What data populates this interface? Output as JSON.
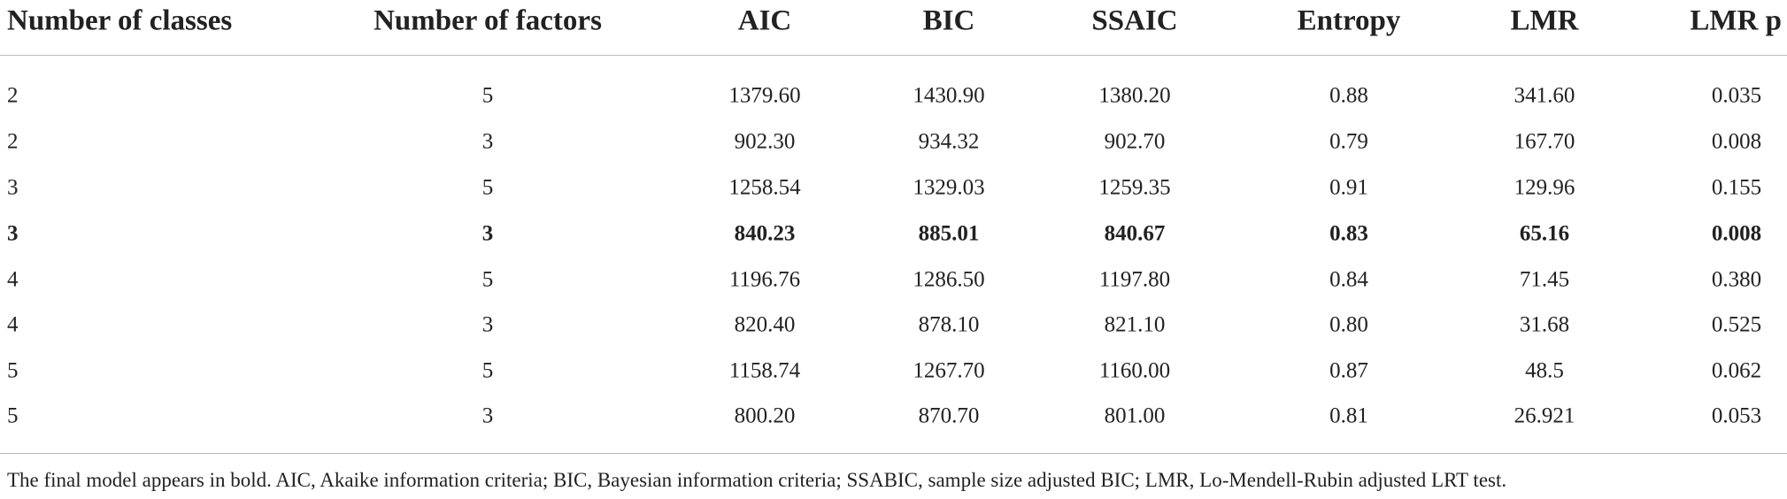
{
  "table": {
    "header": [
      "Number of classes",
      "Number of factors",
      "AIC",
      "BIC",
      "SSAIC",
      "Entropy",
      "LMR",
      "LMR p"
    ],
    "rows": [
      [
        "2",
        "5",
        "1379.60",
        "1430.90",
        "1380.20",
        "0.88",
        "341.60",
        "0.035"
      ],
      [
        "2",
        "3",
        "902.30",
        "934.32",
        "902.70",
        "0.79",
        "167.70",
        "0.008"
      ],
      [
        "3",
        "5",
        "1258.54",
        "1329.03",
        "1259.35",
        "0.91",
        "129.96",
        "0.155"
      ],
      [
        "3",
        "3",
        "840.23",
        "885.01",
        "840.67",
        "0.83",
        "65.16",
        "0.008"
      ],
      [
        "4",
        "5",
        "1196.76",
        "1286.50",
        "1197.80",
        "0.84",
        "71.45",
        "0.380"
      ],
      [
        "4",
        "3",
        "820.40",
        "878.10",
        "821.10",
        "0.80",
        "31.68",
        "0.525"
      ],
      [
        "5",
        "5",
        "1158.74",
        "1267.70",
        "1160.00",
        "0.87",
        "48.5",
        "0.062"
      ],
      [
        "5",
        "3",
        "800.20",
        "870.70",
        "801.00",
        "0.81",
        "26.921",
        "0.053"
      ]
    ],
    "bold_row": 3
  },
  "footnote": "The final model appears in bold. AIC, Akaike information criteria; BIC, Bayesian information criteria; SSABIC, sample size adjusted BIC; LMR, Lo-Mendell-Rubin adjusted LRT test."
}
